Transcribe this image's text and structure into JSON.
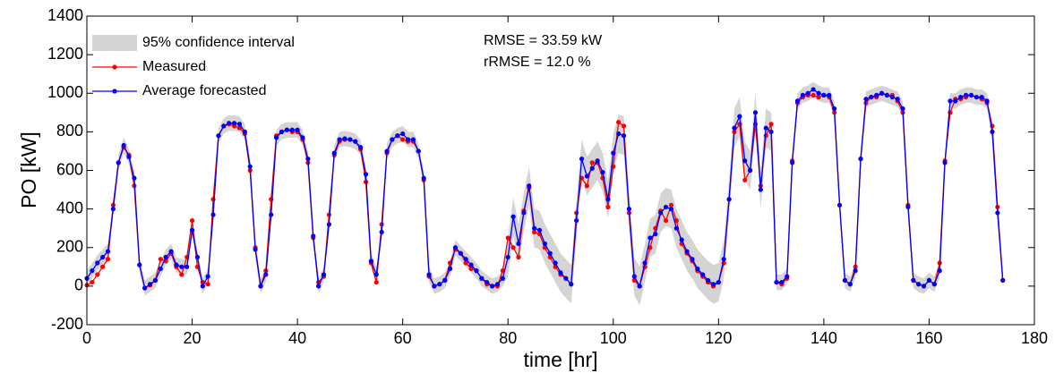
{
  "chart_data": {
    "type": "line",
    "xlabel": "time [hr]",
    "ylabel": "PO [kW]",
    "annotations": [
      "RMSE  = 33.59 kW",
      "rRMSE = 12.0 %"
    ],
    "legend": "upper left",
    "xlim": [
      0,
      180
    ],
    "xticks": [
      0,
      20,
      40,
      60,
      80,
      100,
      120,
      140,
      160,
      180
    ],
    "ylim": [
      -200,
      1400
    ],
    "yticks": [
      -200,
      0,
      200,
      400,
      600,
      800,
      1000,
      1200,
      1400
    ],
    "x": [
      0,
      1,
      2,
      3,
      4,
      5,
      6,
      7,
      8,
      9,
      10,
      11,
      12,
      13,
      14,
      15,
      16,
      17,
      18,
      19,
      20,
      21,
      22,
      23,
      24,
      25,
      26,
      27,
      28,
      29,
      30,
      31,
      32,
      33,
      34,
      35,
      36,
      37,
      38,
      39,
      40,
      41,
      42,
      43,
      44,
      45,
      46,
      47,
      48,
      49,
      50,
      51,
      52,
      53,
      54,
      55,
      56,
      57,
      58,
      59,
      60,
      61,
      62,
      63,
      64,
      65,
      66,
      67,
      68,
      69,
      70,
      71,
      72,
      73,
      74,
      75,
      76,
      77,
      78,
      79,
      80,
      81,
      82,
      83,
      84,
      85,
      86,
      87,
      88,
      89,
      90,
      91,
      92,
      93,
      94,
      95,
      96,
      97,
      98,
      99,
      100,
      101,
      102,
      103,
      104,
      105,
      106,
      107,
      108,
      109,
      110,
      111,
      112,
      113,
      114,
      115,
      116,
      117,
      118,
      119,
      120,
      121,
      122,
      123,
      124,
      125,
      126,
      127,
      128,
      129,
      130,
      131,
      132,
      133,
      134,
      135,
      136,
      137,
      138,
      139,
      140,
      141,
      142,
      143,
      144,
      145,
      146,
      147,
      148,
      149,
      150,
      151,
      152,
      153,
      154,
      155,
      156,
      157,
      158,
      159,
      160,
      161,
      162,
      163,
      164,
      165,
      166,
      167,
      168,
      169,
      170,
      171,
      172,
      173,
      174
    ],
    "series": [
      {
        "name": "95% confidence interval",
        "color": "#d4d4d4",
        "lower": [
          0,
          40,
          80,
          110,
          140,
          360,
          600,
          690,
          630,
          520,
          70,
          -50,
          -30,
          -10,
          50,
          110,
          140,
          70,
          60,
          60,
          250,
          110,
          -40,
          10,
          330,
          740,
          790,
          805,
          805,
          800,
          760,
          580,
          150,
          -40,
          20,
          330,
          730,
          760,
          770,
          770,
          770,
          730,
          620,
          220,
          -40,
          20,
          280,
          650,
          720,
          725,
          720,
          710,
          680,
          540,
          90,
          20,
          240,
          660,
          720,
          740,
          750,
          720,
          720,
          660,
          520,
          20,
          -40,
          -30,
          -10,
          50,
          160,
          130,
          100,
          70,
          40,
          0,
          -20,
          -40,
          -30,
          0,
          50,
          260,
          120,
          280,
          420,
          200,
          190,
          120,
          70,
          20,
          -30,
          -60,
          -90,
          240,
          560,
          470,
          510,
          550,
          490,
          350,
          590,
          690,
          680,
          300,
          -50,
          -100,
          20,
          150,
          170,
          280,
          310,
          300,
          200,
          140,
          80,
          40,
          -10,
          -40,
          -70,
          -90,
          -80,
          40,
          350,
          720,
          780,
          550,
          500,
          800,
          400,
          720,
          700,
          -20,
          -20,
          10,
          600,
          920,
          950,
          960,
          980,
          960,
          950,
          950,
          880,
          380,
          -10,
          -30,
          40,
          620,
          930,
          940,
          950,
          960,
          950,
          940,
          930,
          880,
          370,
          -10,
          -30,
          -40,
          -10,
          -30,
          40,
          600,
          920,
          920,
          940,
          950,
          950,
          940,
          940,
          920,
          760,
          340,
          -10
        ],
        "upper": [
          80,
          120,
          160,
          190,
          220,
          440,
          680,
          770,
          710,
          600,
          150,
          30,
          50,
          70,
          130,
          190,
          220,
          150,
          140,
          140,
          330,
          190,
          40,
          90,
          410,
          820,
          870,
          885,
          885,
          880,
          840,
          660,
          230,
          40,
          100,
          410,
          810,
          840,
          850,
          850,
          850,
          810,
          700,
          300,
          40,
          100,
          360,
          730,
          800,
          805,
          800,
          790,
          760,
          620,
          170,
          100,
          320,
          740,
          800,
          820,
          830,
          800,
          800,
          740,
          600,
          100,
          40,
          50,
          70,
          130,
          240,
          210,
          180,
          150,
          120,
          80,
          60,
          40,
          50,
          80,
          250,
          460,
          320,
          480,
          620,
          400,
          390,
          320,
          270,
          220,
          170,
          140,
          110,
          440,
          760,
          670,
          710,
          750,
          690,
          550,
          790,
          890,
          880,
          500,
          150,
          100,
          220,
          350,
          370,
          480,
          510,
          500,
          400,
          340,
          280,
          240,
          190,
          160,
          130,
          110,
          120,
          240,
          550,
          920,
          980,
          750,
          700,
          1000,
          600,
          920,
          900,
          60,
          60,
          90,
          680,
          1000,
          1030,
          1040,
          1060,
          1040,
          1030,
          1030,
          960,
          460,
          70,
          50,
          120,
          700,
          1010,
          1020,
          1030,
          1040,
          1030,
          1020,
          1010,
          960,
          450,
          70,
          50,
          40,
          70,
          50,
          120,
          680,
          1000,
          1000,
          1020,
          1030,
          1030,
          1020,
          1020,
          1000,
          840,
          420,
          70
        ]
      },
      {
        "name": "Measured",
        "color": "#ff0000",
        "values": [
          5,
          20,
          60,
          100,
          140,
          420,
          640,
          720,
          680,
          520,
          110,
          -10,
          5,
          30,
          140,
          130,
          170,
          100,
          60,
          150,
          340,
          100,
          20,
          10,
          450,
          780,
          830,
          840,
          830,
          820,
          790,
          600,
          200,
          0,
          80,
          450,
          780,
          800,
          810,
          800,
          800,
          760,
          640,
          250,
          20,
          50,
          370,
          680,
          750,
          760,
          760,
          750,
          710,
          540,
          120,
          20,
          320,
          690,
          760,
          780,
          760,
          750,
          750,
          700,
          550,
          50,
          0,
          10,
          30,
          120,
          190,
          170,
          120,
          90,
          80,
          40,
          10,
          0,
          0,
          80,
          250,
          200,
          150,
          390,
          510,
          280,
          270,
          200,
          150,
          100,
          60,
          40,
          10,
          380,
          560,
          520,
          640,
          640,
          560,
          410,
          620,
          850,
          830,
          380,
          30,
          0,
          100,
          200,
          300,
          390,
          340,
          420,
          340,
          220,
          170,
          130,
          80,
          50,
          20,
          0,
          20,
          120,
          450,
          800,
          840,
          550,
          600,
          840,
          520,
          780,
          840,
          20,
          10,
          40,
          650,
          950,
          980,
          990,
          990,
          980,
          990,
          980,
          900,
          420,
          30,
          10,
          100,
          660,
          950,
          980,
          980,
          1000,
          990,
          990,
          960,
          900,
          420,
          30,
          10,
          0,
          30,
          10,
          120,
          650,
          900,
          970,
          970,
          980,
          990,
          980,
          970,
          950,
          830,
          410,
          30
        ]
      },
      {
        "name": "Average forecasted",
        "color": "#0000ff",
        "values": [
          40,
          80,
          120,
          150,
          180,
          400,
          640,
          730,
          670,
          560,
          110,
          -10,
          10,
          30,
          90,
          150,
          180,
          110,
          100,
          100,
          290,
          150,
          0,
          50,
          370,
          780,
          830,
          845,
          845,
          840,
          800,
          620,
          190,
          0,
          60,
          370,
          770,
          800,
          810,
          810,
          810,
          770,
          660,
          260,
          0,
          60,
          320,
          690,
          760,
          765,
          760,
          750,
          720,
          580,
          130,
          60,
          280,
          700,
          760,
          780,
          790,
          760,
          760,
          700,
          560,
          60,
          0,
          10,
          30,
          90,
          200,
          170,
          140,
          110,
          80,
          40,
          20,
          0,
          10,
          40,
          150,
          360,
          220,
          380,
          520,
          300,
          290,
          220,
          170,
          120,
          70,
          40,
          10,
          340,
          660,
          570,
          610,
          650,
          590,
          450,
          690,
          790,
          780,
          400,
          50,
          0,
          120,
          250,
          270,
          380,
          410,
          400,
          300,
          240,
          180,
          140,
          90,
          60,
          30,
          10,
          20,
          140,
          450,
          820,
          880,
          650,
          600,
          900,
          500,
          820,
          800,
          20,
          20,
          50,
          640,
          960,
          990,
          1000,
          1020,
          1000,
          990,
          990,
          920,
          420,
          30,
          10,
          80,
          660,
          970,
          980,
          990,
          1000,
          990,
          980,
          970,
          920,
          410,
          30,
          10,
          0,
          30,
          10,
          80,
          640,
          960,
          960,
          980,
          990,
          990,
          980,
          980,
          960,
          800,
          380,
          30
        ]
      }
    ]
  }
}
